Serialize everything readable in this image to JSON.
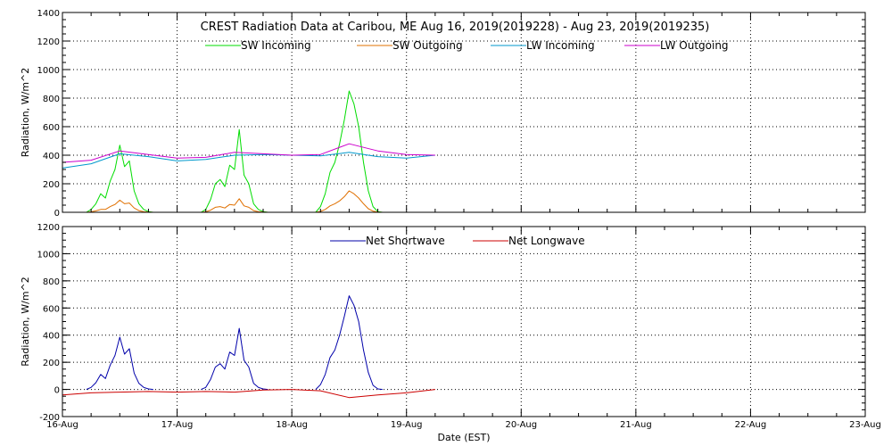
{
  "chart_data": [
    {
      "type": "line",
      "title": "CREST Radiation Data at Caribou, ME   Aug 16, 2019(2019228) - Aug 23, 2019(2019235)",
      "ylabel": "Radiation, W/m^2",
      "xlabel": "",
      "xlim": [
        "2019-08-16",
        "2019-08-23"
      ],
      "ylim": [
        0,
        1400
      ],
      "yticks": [
        0,
        200,
        400,
        600,
        800,
        1000,
        1200,
        1400
      ],
      "xticks": [
        "16-Aug",
        "17-Aug",
        "18-Aug",
        "19-Aug",
        "20-Aug",
        "21-Aug",
        "22-Aug",
        "23-Aug"
      ],
      "grid": true,
      "legend": "top",
      "series": [
        {
          "name": "SW Incoming",
          "color": "#00dd00",
          "x": [
            "2019-08-16 05:00",
            "2019-08-16 06:00",
            "2019-08-16 07:00",
            "2019-08-16 08:00",
            "2019-08-16 09:00",
            "2019-08-16 10:00",
            "2019-08-16 11:00",
            "2019-08-16 12:00",
            "2019-08-16 13:00",
            "2019-08-16 14:00",
            "2019-08-16 15:00",
            "2019-08-16 16:00",
            "2019-08-16 17:00",
            "2019-08-16 18:00",
            "2019-08-16 19:00",
            "2019-08-17 05:00",
            "2019-08-17 06:00",
            "2019-08-17 07:00",
            "2019-08-17 08:00",
            "2019-08-17 09:00",
            "2019-08-17 10:00",
            "2019-08-17 11:00",
            "2019-08-17 12:00",
            "2019-08-17 13:00",
            "2019-08-17 14:00",
            "2019-08-17 15:00",
            "2019-08-17 16:00",
            "2019-08-17 17:00",
            "2019-08-17 18:00",
            "2019-08-17 19:00",
            "2019-08-18 05:00",
            "2019-08-18 06:00",
            "2019-08-18 07:00",
            "2019-08-18 08:00",
            "2019-08-18 09:00",
            "2019-08-18 10:00",
            "2019-08-18 11:00",
            "2019-08-18 12:00",
            "2019-08-18 13:00",
            "2019-08-18 14:00",
            "2019-08-18 15:00",
            "2019-08-18 16:00",
            "2019-08-18 17:00",
            "2019-08-18 18:00",
            "2019-08-18 19:00"
          ],
          "values": [
            0,
            20,
            60,
            130,
            100,
            220,
            300,
            470,
            320,
            360,
            150,
            60,
            20,
            5,
            0,
            0,
            20,
            90,
            200,
            230,
            180,
            330,
            300,
            580,
            260,
            200,
            60,
            20,
            5,
            0,
            0,
            40,
            130,
            280,
            350,
            480,
            650,
            850,
            760,
            600,
            350,
            150,
            40,
            5,
            0
          ]
        },
        {
          "name": "SW Outgoing",
          "color": "#e07000",
          "x": [
            "2019-08-16 05:00",
            "2019-08-16 06:00",
            "2019-08-16 07:00",
            "2019-08-16 08:00",
            "2019-08-16 09:00",
            "2019-08-16 10:00",
            "2019-08-16 11:00",
            "2019-08-16 12:00",
            "2019-08-16 13:00",
            "2019-08-16 14:00",
            "2019-08-16 15:00",
            "2019-08-16 16:00",
            "2019-08-16 17:00",
            "2019-08-16 18:00",
            "2019-08-16 19:00",
            "2019-08-17 05:00",
            "2019-08-17 06:00",
            "2019-08-17 07:00",
            "2019-08-17 08:00",
            "2019-08-17 09:00",
            "2019-08-17 10:00",
            "2019-08-17 11:00",
            "2019-08-17 12:00",
            "2019-08-17 13:00",
            "2019-08-17 14:00",
            "2019-08-17 15:00",
            "2019-08-17 16:00",
            "2019-08-17 17:00",
            "2019-08-17 18:00",
            "2019-08-17 19:00",
            "2019-08-18 05:00",
            "2019-08-18 06:00",
            "2019-08-18 07:00",
            "2019-08-18 08:00",
            "2019-08-18 09:00",
            "2019-08-18 10:00",
            "2019-08-18 11:00",
            "2019-08-18 12:00",
            "2019-08-18 13:00",
            "2019-08-18 14:00",
            "2019-08-18 15:00",
            "2019-08-18 16:00",
            "2019-08-18 17:00",
            "2019-08-18 18:00",
            "2019-08-18 19:00"
          ],
          "values": [
            0,
            3,
            10,
            20,
            20,
            40,
            55,
            85,
            60,
            65,
            30,
            12,
            4,
            1,
            0,
            0,
            3,
            15,
            35,
            40,
            30,
            55,
            50,
            95,
            45,
            35,
            12,
            4,
            1,
            0,
            0,
            6,
            20,
            45,
            60,
            80,
            110,
            150,
            130,
            100,
            60,
            25,
            8,
            1,
            0
          ]
        },
        {
          "name": "LW Incoming",
          "color": "#0099cc",
          "x": [
            "2019-08-16 00:00",
            "2019-08-16 06:00",
            "2019-08-16 12:00",
            "2019-08-16 18:00",
            "2019-08-17 00:00",
            "2019-08-17 06:00",
            "2019-08-17 12:00",
            "2019-08-17 18:00",
            "2019-08-18 00:00",
            "2019-08-18 06:00",
            "2019-08-18 12:00",
            "2019-08-18 18:00",
            "2019-08-19 00:00",
            "2019-08-19 06:00"
          ],
          "values": [
            310,
            340,
            410,
            390,
            360,
            370,
            400,
            405,
            400,
            395,
            420,
            390,
            380,
            400
          ]
        },
        {
          "name": "LW Outgoing",
          "color": "#cc00cc",
          "x": [
            "2019-08-16 00:00",
            "2019-08-16 06:00",
            "2019-08-16 12:00",
            "2019-08-16 18:00",
            "2019-08-17 00:00",
            "2019-08-17 06:00",
            "2019-08-17 12:00",
            "2019-08-17 18:00",
            "2019-08-18 00:00",
            "2019-08-18 06:00",
            "2019-08-18 12:00",
            "2019-08-18 18:00",
            "2019-08-19 00:00",
            "2019-08-19 06:00"
          ],
          "values": [
            350,
            365,
            430,
            405,
            380,
            385,
            420,
            410,
            400,
            405,
            480,
            430,
            405,
            400
          ]
        }
      ]
    },
    {
      "type": "line",
      "title": "",
      "ylabel": "Radiation, W/m^2",
      "xlabel": "Date (EST)",
      "xlim": [
        "2019-08-16",
        "2019-08-23"
      ],
      "ylim": [
        -200,
        1200
      ],
      "yticks": [
        -200,
        0,
        200,
        400,
        600,
        800,
        1000,
        1200
      ],
      "xticks": [
        "16-Aug",
        "17-Aug",
        "18-Aug",
        "19-Aug",
        "20-Aug",
        "21-Aug",
        "22-Aug",
        "23-Aug"
      ],
      "grid": true,
      "legend": "top",
      "series": [
        {
          "name": "Net Shortwave",
          "color": "#0000aa",
          "x": [
            "2019-08-16 05:00",
            "2019-08-16 06:00",
            "2019-08-16 07:00",
            "2019-08-16 08:00",
            "2019-08-16 09:00",
            "2019-08-16 10:00",
            "2019-08-16 11:00",
            "2019-08-16 12:00",
            "2019-08-16 13:00",
            "2019-08-16 14:00",
            "2019-08-16 15:00",
            "2019-08-16 16:00",
            "2019-08-16 17:00",
            "2019-08-16 18:00",
            "2019-08-16 19:00",
            "2019-08-17 05:00",
            "2019-08-17 06:00",
            "2019-08-17 07:00",
            "2019-08-17 08:00",
            "2019-08-17 09:00",
            "2019-08-17 10:00",
            "2019-08-17 11:00",
            "2019-08-17 12:00",
            "2019-08-17 13:00",
            "2019-08-17 14:00",
            "2019-08-17 15:00",
            "2019-08-17 16:00",
            "2019-08-17 17:00",
            "2019-08-17 18:00",
            "2019-08-17 19:00",
            "2019-08-18 05:00",
            "2019-08-18 06:00",
            "2019-08-18 07:00",
            "2019-08-18 08:00",
            "2019-08-18 09:00",
            "2019-08-18 10:00",
            "2019-08-18 11:00",
            "2019-08-18 12:00",
            "2019-08-18 13:00",
            "2019-08-18 14:00",
            "2019-08-18 15:00",
            "2019-08-18 16:00",
            "2019-08-18 17:00",
            "2019-08-18 18:00",
            "2019-08-18 19:00"
          ],
          "values": [
            0,
            15,
            50,
            110,
            80,
            180,
            250,
            385,
            260,
            300,
            120,
            45,
            15,
            4,
            0,
            0,
            15,
            75,
            165,
            190,
            150,
            275,
            250,
            450,
            215,
            165,
            45,
            15,
            4,
            0,
            0,
            35,
            110,
            235,
            290,
            400,
            540,
            690,
            620,
            500,
            290,
            125,
            30,
            4,
            0
          ]
        },
        {
          "name": "Net Longwave",
          "color": "#cc0000",
          "x": [
            "2019-08-16 00:00",
            "2019-08-16 06:00",
            "2019-08-16 12:00",
            "2019-08-16 18:00",
            "2019-08-17 00:00",
            "2019-08-17 06:00",
            "2019-08-17 12:00",
            "2019-08-17 18:00",
            "2019-08-18 00:00",
            "2019-08-18 06:00",
            "2019-08-18 12:00",
            "2019-08-18 18:00",
            "2019-08-19 00:00",
            "2019-08-19 06:00"
          ],
          "values": [
            -40,
            -25,
            -20,
            -15,
            -20,
            -15,
            -20,
            -5,
            0,
            -10,
            -60,
            -40,
            -25,
            0
          ]
        }
      ]
    }
  ]
}
